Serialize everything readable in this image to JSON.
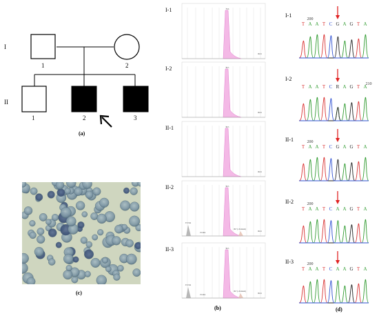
{
  "panels": {
    "a": {
      "caption": "(a)",
      "generations": [
        "I",
        "II"
      ],
      "individuals": {
        "I": [
          "1",
          "2"
        ],
        "II": [
          "1",
          "2",
          "3"
        ]
      }
    },
    "b": {
      "caption": "(b)",
      "traces": [
        {
          "label": "I-1",
          "annotations": [
            "78.6",
            "96.61"
          ]
        },
        {
          "label": "I-2",
          "annotations": [
            "98.3",
            "96.61"
          ]
        },
        {
          "label": "II-1",
          "annotations": [
            "98.3",
            "96.61"
          ]
        },
        {
          "label": "II-2",
          "annotations": [
            "372.5bd",
            "153.4bd",
            "98.3",
            "98.7 (c.6 mutant)",
            "96.61"
          ]
        },
        {
          "label": "II-3",
          "annotations": [
            "372.5bd",
            "153.4bd",
            "98.3",
            "98.7 (c.6 mutant)",
            "96.61"
          ]
        }
      ]
    },
    "c": {
      "caption": "(c)"
    },
    "d": {
      "caption": "(d)",
      "rows": [
        {
          "label": "I-1",
          "sequence": "T A A T C G A G T A",
          "position": "200"
        },
        {
          "label": "I-2",
          "sequence": "T A A T C R A G T A",
          "position": "210"
        },
        {
          "label": "II-1",
          "sequence": "T A A T C G A G T A",
          "position": "200"
        },
        {
          "label": "II-2",
          "sequence": "T A A T C A A G T A",
          "position": "200"
        },
        {
          "label": "II-3",
          "sequence": "T A A T C A A G T A",
          "position": "200"
        }
      ]
    }
  }
}
